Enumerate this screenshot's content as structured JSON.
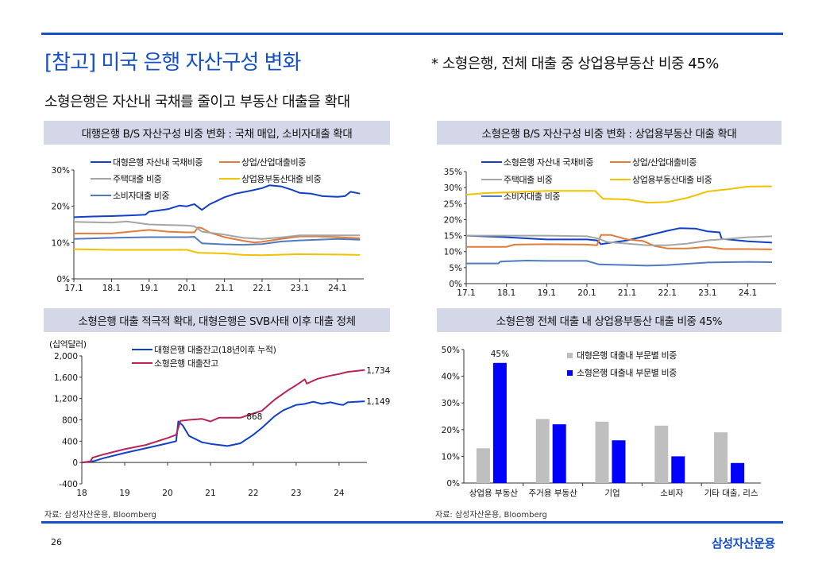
{
  "header": {
    "title": "[참고] 미국 은행 자산구성 변화",
    "note": "* 소형은행, 전체 대출 중 상업용부동산 비중 45%",
    "subtitle": "소형은행은 자산내 국채를 줄이고 부동산 대출을 확대"
  },
  "panels": {
    "p1": "대행은행 B/S 자산구성 비중 변화 : 국채 매입, 소비자대출 확대",
    "p2": "소형은행 B/S 자산구성 비중 변화 : 상업용부동산 대출 확대",
    "p3": "소형은행 대출 적극적 확대, 대형은행은 SVB사태 이후 대출 정체",
    "p4": "소형은행 전체 대출 내 상업용부동산 대출 비중 45%"
  },
  "source_left": "자료: 삼성자산운용, Bloomberg",
  "source_right": "자료: 삼성자산운용, Bloomberg",
  "footer": {
    "page_number": "26",
    "logo": "삼성자산운용"
  },
  "colors": {
    "accent": "#1450c8",
    "treasury": "#1040c8",
    "ci": "#e07b39",
    "resi": "#a5a5a5",
    "cre": "#f2c200",
    "consumer": "#4f7ac0",
    "small_loans": "#b8245a",
    "bar_large": "#bfbfbf",
    "bar_small": "#0000ff"
  },
  "chart_data": [
    {
      "type": "line",
      "title": "대행은행 B/S 자산구성 비중 변화 : 국채 매입, 소비자대출 확대",
      "ylim": [
        0,
        30
      ],
      "yticks": [
        0,
        10,
        20,
        30
      ],
      "ytick_labels": [
        "0%",
        "10%",
        "20%",
        "30%"
      ],
      "xlim": [
        17.0,
        24.7
      ],
      "xticks": [
        17,
        18,
        19,
        20,
        21,
        22,
        23,
        24
      ],
      "xtick_labels": [
        "17.1",
        "18.1",
        "19.1",
        "20.1",
        "21.1",
        "22.1",
        "23.1",
        "24.1"
      ],
      "series": [
        {
          "name": "대형은행  자산내 국채비중",
          "color": "#1040c8",
          "x": [
            17,
            17.5,
            18,
            18.5,
            18.9,
            19,
            19.5,
            19.8,
            20,
            20.2,
            20.4,
            20.6,
            21,
            21.3,
            21.7,
            22,
            22.2,
            22.5,
            22.8,
            23,
            23.3,
            23.6,
            24,
            24.2,
            24.35,
            24.6
          ],
          "y": [
            17,
            17.2,
            17.3,
            17.5,
            17.7,
            18.5,
            19.2,
            20.2,
            20,
            20.6,
            19,
            20.5,
            22.5,
            23.5,
            24.3,
            25,
            25.8,
            25.5,
            24.5,
            23.7,
            23.5,
            22.8,
            22.6,
            22.8,
            24,
            23.5
          ]
        },
        {
          "name": "상업/산업대출비중",
          "color": "#e07b39",
          "x": [
            17,
            18,
            19,
            19.5,
            20,
            20.2,
            20.3,
            20.4,
            20.6,
            21,
            21.5,
            21.8,
            22,
            22.5,
            23,
            23.5,
            24,
            24.6
          ],
          "y": [
            12.5,
            12.5,
            13.5,
            13,
            12.8,
            12.8,
            14.2,
            14,
            12.8,
            11.5,
            10.5,
            10,
            10.2,
            11,
            11.7,
            11.7,
            11.5,
            11.2
          ]
        },
        {
          "name": "주택대출 비중",
          "color": "#a5a5a5",
          "x": [
            17,
            18,
            18.4,
            19,
            20,
            20.2,
            20.4,
            21,
            21.5,
            22,
            22.5,
            23,
            24,
            24.6
          ],
          "y": [
            15.7,
            15.5,
            15.8,
            15,
            14.7,
            14.5,
            13,
            12.2,
            11.3,
            11,
            11.4,
            12,
            12,
            12
          ]
        },
        {
          "name": "상업용부동산대출 비중",
          "color": "#f2c200",
          "x": [
            17,
            18,
            19,
            20,
            20.3,
            21,
            21.5,
            22,
            23,
            24,
            24.6
          ],
          "y": [
            8.2,
            8,
            8,
            8,
            7.2,
            7,
            6.6,
            6.5,
            6.8,
            6.7,
            6.6
          ]
        },
        {
          "name": "소비자대출 비중",
          "color": "#4f7ac0",
          "x": [
            17,
            18,
            19,
            20,
            20.2,
            20.4,
            21,
            21.5,
            22,
            22.5,
            23,
            24,
            24.6
          ],
          "y": [
            11,
            11.3,
            11.5,
            11.5,
            11.6,
            9.8,
            9.5,
            9.4,
            9.6,
            10.3,
            10.6,
            11,
            10.8
          ]
        }
      ]
    },
    {
      "type": "line",
      "title": "소형은행 B/S 자산구성 비중 변화 : 상업용부동산 대출 확대",
      "ylim": [
        0,
        35
      ],
      "yticks": [
        0,
        5,
        10,
        15,
        20,
        25,
        30,
        35
      ],
      "ytick_labels": [
        "0%",
        "5%",
        "10%",
        "15%",
        "20%",
        "25%",
        "30%",
        "35%"
      ],
      "xlim": [
        17.0,
        24.7
      ],
      "xticks": [
        17,
        18,
        19,
        20,
        21,
        22,
        23,
        24
      ],
      "xtick_labels": [
        "17.1",
        "18.1",
        "19.1",
        "20.1",
        "21.1",
        "22.1",
        "23.1",
        "24.1"
      ],
      "series": [
        {
          "name": "소형은행  자산내 국채비중",
          "color": "#1040c8",
          "x": [
            17,
            18,
            19,
            20,
            20.25,
            20.35,
            20.6,
            21,
            21.5,
            22,
            22.3,
            22.7,
            23,
            23.3,
            23.35,
            24,
            24.6
          ],
          "y": [
            15,
            14.5,
            13.8,
            13.8,
            13.5,
            12.3,
            12.8,
            13.5,
            15,
            16.5,
            17.3,
            17.2,
            16.3,
            16,
            14,
            13.2,
            12.8
          ]
        },
        {
          "name": "상업/산업대출비중",
          "color": "#e07b39",
          "x": [
            17,
            18,
            18.2,
            19,
            20,
            20.25,
            20.35,
            20.6,
            21,
            21.4,
            21.7,
            22,
            22.5,
            23,
            23.4,
            24,
            24.6
          ],
          "y": [
            11.5,
            11.5,
            12.2,
            12.3,
            12.2,
            12,
            15.2,
            15.2,
            13.8,
            13.3,
            11.7,
            11,
            11,
            11.5,
            10.8,
            10.8,
            10.7
          ]
        },
        {
          "name": "주택대출 비중",
          "color": "#a5a5a5",
          "x": [
            17,
            18,
            19,
            20,
            20.3,
            20.5,
            21,
            21.5,
            22,
            22.5,
            23,
            24,
            24.6
          ],
          "y": [
            15,
            15,
            15,
            14.8,
            14,
            13,
            12.5,
            12,
            12,
            12.5,
            13.5,
            14.5,
            14.8
          ]
        },
        {
          "name": "상업용부동산대출 비중",
          "color": "#f2c200",
          "x": [
            17,
            17.5,
            18,
            19,
            20,
            20.2,
            20.4,
            21,
            21.5,
            22,
            22.5,
            23,
            23.5,
            24,
            24.6
          ],
          "y": [
            27.8,
            28.3,
            28.5,
            29,
            29,
            29,
            26.5,
            26.3,
            25.3,
            25.5,
            26.8,
            28.8,
            29.5,
            30.3,
            30.4
          ]
        },
        {
          "name": "소비자대출 비중",
          "color": "#4f7ac0",
          "x": [
            17,
            17.8,
            17.85,
            18.5,
            19,
            20,
            20.3,
            21,
            21.5,
            22,
            22.5,
            23,
            24,
            24.6
          ],
          "y": [
            6.3,
            6.3,
            6.9,
            7.2,
            7.1,
            7.1,
            6,
            5.8,
            5.6,
            5.8,
            6.2,
            6.6,
            6.8,
            6.7
          ]
        }
      ]
    },
    {
      "type": "line",
      "title": "소형은행 대출 적극적 확대, 대형은행은 SVB사태 이후 대출 정체",
      "ylabel": "(십억달러)",
      "ylim": [
        -400,
        2000
      ],
      "yticks": [
        -400,
        0,
        400,
        800,
        1200,
        1600,
        2000
      ],
      "ytick_labels": [
        "-400",
        "0",
        "400",
        "800",
        "1,200",
        "1,600",
        "2,000"
      ],
      "xlim": [
        18,
        24.65
      ],
      "xticks": [
        18,
        19,
        20,
        21,
        22,
        23,
        24
      ],
      "xtick_labels": [
        "18",
        "19",
        "20",
        "21",
        "22",
        "23",
        "24"
      ],
      "series": [
        {
          "name": "대형은행 대출잔고(18년이후 누적)",
          "color": "#1040c8",
          "end_label": "1,149",
          "x": [
            18,
            18.3,
            18.5,
            19,
            19.5,
            20,
            20.2,
            20.25,
            20.35,
            20.5,
            20.8,
            21,
            21.4,
            21.7,
            22,
            22.2,
            22.5,
            22.7,
            23,
            23.2,
            23.4,
            23.6,
            23.8,
            24,
            24.1,
            24.2,
            24.6
          ],
          "y": [
            0,
            30,
            80,
            180,
            270,
            360,
            400,
            770,
            700,
            500,
            380,
            350,
            310,
            360,
            520,
            650,
            870,
            980,
            1080,
            1100,
            1140,
            1100,
            1130,
            1090,
            1080,
            1130,
            1149
          ]
        },
        {
          "name": "소형은행 대출잔고",
          "color": "#b8245a",
          "end_label": "1,734",
          "x": [
            18,
            18.2,
            18.25,
            18.5,
            19,
            19.5,
            20,
            20.2,
            20.3,
            20.5,
            20.8,
            21,
            21.2,
            21.5,
            21.7,
            22,
            22.2,
            22.5,
            22.8,
            23,
            23.2,
            23.25,
            23.5,
            23.8,
            24,
            24.2,
            24.6
          ],
          "y": [
            0,
            20,
            90,
            150,
            250,
            330,
            460,
            520,
            780,
            800,
            820,
            770,
            840,
            840,
            840,
            920,
            970,
            1180,
            1350,
            1450,
            1560,
            1480,
            1570,
            1630,
            1660,
            1700,
            1734
          ]
        }
      ],
      "annotations": [
        {
          "text": "868",
          "x": 22.1,
          "y": 868
        }
      ]
    },
    {
      "type": "bar",
      "title": "소형은행 전체 대출 내 상업용부동산 대출 비중 45%",
      "categories": [
        "상업용 부동산",
        "주거용 부동산",
        "기업",
        "소비자",
        "기타 대출, 리스"
      ],
      "ylim": [
        0,
        50
      ],
      "yticks": [
        0,
        10,
        20,
        30,
        40,
        50
      ],
      "ytick_labels": [
        "0%",
        "10%",
        "20%",
        "30%",
        "40%",
        "50%"
      ],
      "series": [
        {
          "name": "대형은행 대출내 부문별 비중",
          "color": "#bfbfbf",
          "values": [
            13,
            24,
            23,
            21.5,
            19
          ]
        },
        {
          "name": "소형은행 대출내 부문별 비중",
          "color": "#0000ff",
          "values": [
            45,
            22,
            16,
            10,
            7.5
          ]
        }
      ],
      "annotations": [
        {
          "text": "45%",
          "category": "상업용 부동산",
          "y": 45
        }
      ]
    }
  ]
}
